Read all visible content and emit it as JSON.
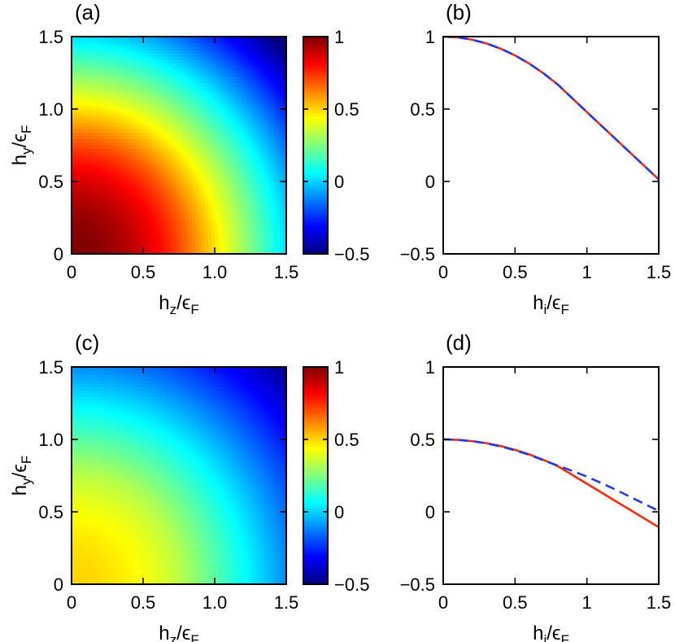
{
  "chart_data": [
    {
      "panel": "(a)",
      "type": "heatmap",
      "xlabel": "h_z/ε_F",
      "ylabel": "h_y/ε_F",
      "xlim": [
        0,
        1.5
      ],
      "ylim": [
        0,
        1.5
      ],
      "xticks": [
        "0",
        "0.5",
        "1.0",
        "1.5"
      ],
      "yticks": [
        "0",
        "0.5",
        "1.0",
        "1.5"
      ],
      "field": {
        "peak": 1.0,
        "curvature": 0.52,
        "knee_radius": 0.8,
        "slope": 0.93
      },
      "colorbar": {
        "min": -0.5,
        "max": 1.0,
        "ticks": [
          "1",
          "0.5",
          "0",
          "−0.5"
        ]
      }
    },
    {
      "panel": "(b)",
      "type": "line",
      "xlabel": "h_i/ε_F",
      "xlim": [
        0,
        1.5
      ],
      "ylim": [
        -0.5,
        1.0
      ],
      "xticks": [
        "0",
        "0.5",
        "1",
        "1.5"
      ],
      "yticks": [
        "1",
        "0.5",
        "0",
        "−0.5"
      ],
      "series": [
        {
          "name": "solid",
          "color": "#ff2a0a",
          "style": "solid",
          "x": [
            0,
            0.1,
            0.2,
            0.3,
            0.4,
            0.5,
            0.6,
            0.7,
            0.8,
            0.9,
            1.0,
            1.1,
            1.2,
            1.3,
            1.4,
            1.5
          ],
          "y": [
            1.0,
            0.995,
            0.979,
            0.953,
            0.917,
            0.87,
            0.813,
            0.745,
            0.667,
            0.573,
            0.479,
            0.386,
            0.293,
            0.2,
            0.107,
            0.014
          ]
        },
        {
          "name": "dashed",
          "color": "#1f3be8",
          "style": "dashed",
          "x": [
            0,
            0.1,
            0.2,
            0.3,
            0.4,
            0.5,
            0.6,
            0.7,
            0.8,
            0.9,
            1.0,
            1.1,
            1.2,
            1.3,
            1.4,
            1.5
          ],
          "y": [
            1.0,
            0.995,
            0.979,
            0.953,
            0.917,
            0.87,
            0.813,
            0.745,
            0.667,
            0.573,
            0.479,
            0.386,
            0.293,
            0.2,
            0.107,
            0.014
          ]
        }
      ]
    },
    {
      "panel": "(c)",
      "type": "heatmap",
      "xlabel": "h_z/ε_F",
      "ylabel": "h_y/ε_F",
      "xlim": [
        0,
        1.5
      ],
      "ylim": [
        0,
        1.5
      ],
      "xticks": [
        "0",
        "0.5",
        "1.0",
        "1.5"
      ],
      "yticks": [
        "0",
        "0.5",
        "1.0",
        "1.5"
      ],
      "field": {
        "peak": 0.5,
        "curvature": 0.29,
        "knee_radius": 0.8,
        "slope": 0.6
      },
      "colorbar": {
        "min": -0.5,
        "max": 1.0,
        "ticks": [
          "1",
          "0.5",
          "0",
          "−0.5"
        ]
      }
    },
    {
      "panel": "(d)",
      "type": "line",
      "xlabel": "h_i/ε_F",
      "xlim": [
        0,
        1.5
      ],
      "ylim": [
        -0.5,
        1.0
      ],
      "xticks": [
        "0",
        "0.5",
        "1",
        "1.5"
      ],
      "yticks": [
        "1",
        "0.5",
        "0",
        "−0.5"
      ],
      "series": [
        {
          "name": "solid",
          "color": "#ff2a0a",
          "style": "solid",
          "x": [
            0,
            0.1,
            0.2,
            0.3,
            0.4,
            0.5,
            0.6,
            0.7,
            0.8,
            0.9,
            1.0,
            1.1,
            1.2,
            1.3,
            1.4,
            1.5
          ],
          "y": [
            0.5,
            0.497,
            0.488,
            0.474,
            0.454,
            0.428,
            0.396,
            0.358,
            0.314,
            0.254,
            0.194,
            0.134,
            0.074,
            0.014,
            -0.046,
            -0.106
          ]
        },
        {
          "name": "dashed",
          "color": "#1f3be8",
          "style": "dashed",
          "x": [
            0,
            0.1,
            0.2,
            0.3,
            0.4,
            0.5,
            0.6,
            0.7,
            0.8,
            0.9,
            1.0,
            1.1,
            1.2,
            1.3,
            1.4,
            1.5
          ],
          "y": [
            0.5,
            0.497,
            0.488,
            0.473,
            0.451,
            0.425,
            0.393,
            0.355,
            0.318,
            0.282,
            0.243,
            0.199,
            0.153,
            0.104,
            0.055,
            0.006
          ]
        }
      ]
    }
  ]
}
